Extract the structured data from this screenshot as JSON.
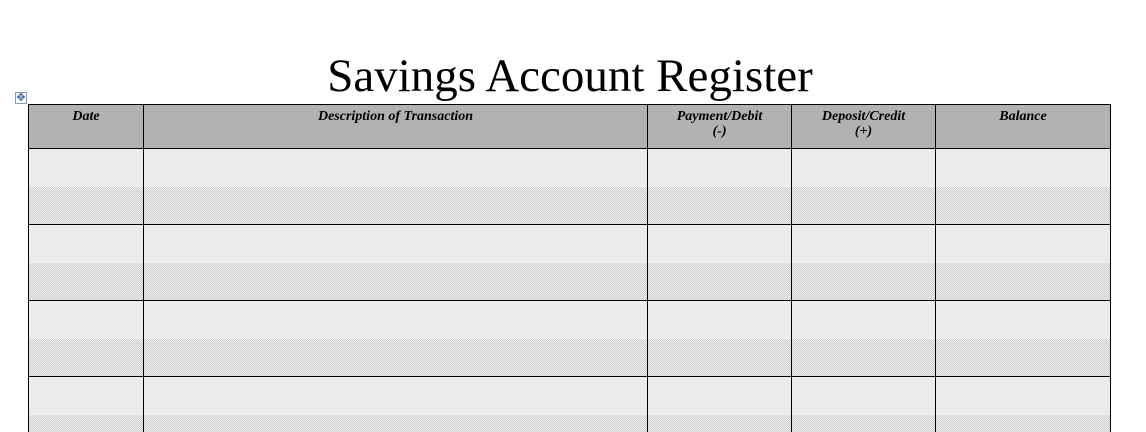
{
  "title": "Savings Account Register",
  "table_move_handle_icon": "move-arrows-icon",
  "columns": [
    {
      "label": "Date",
      "sub": ""
    },
    {
      "label": "Description of Transaction",
      "sub": ""
    },
    {
      "label": "Payment/Debit",
      "sub": "(-)"
    },
    {
      "label": "Deposit/Credit",
      "sub": "(+)"
    },
    {
      "label": "Balance",
      "sub": ""
    }
  ],
  "rows": [
    [
      "",
      "",
      "",
      "",
      ""
    ],
    [
      "",
      "",
      "",
      "",
      ""
    ],
    [
      "",
      "",
      "",
      "",
      ""
    ],
    [
      "",
      "",
      "",
      "",
      ""
    ]
  ]
}
